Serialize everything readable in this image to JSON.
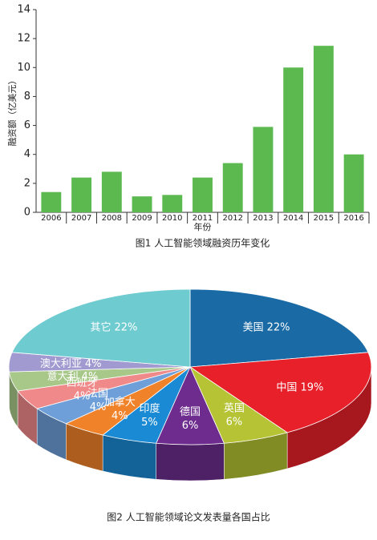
{
  "charts": [
    {
      "type": "bar",
      "title": "图1 人工智能领域融资历年变化",
      "xlabel": "年份",
      "ylabel": "融资额（亿美元）",
      "categories": [
        "2006",
        "2007",
        "2008",
        "2009",
        "2010",
        "2011",
        "2012",
        "2013",
        "2014",
        "2015",
        "2016"
      ],
      "values": [
        1.4,
        2.4,
        2.8,
        1.1,
        1.2,
        2.4,
        3.4,
        5.9,
        10.0,
        11.5,
        4.0
      ],
      "color": "#5cb950",
      "ylim": [
        0,
        14
      ],
      "yticks": [
        0,
        2,
        4,
        6,
        8,
        10,
        12,
        14
      ]
    },
    {
      "type": "pie",
      "title": "图2 人工智能领域论文发表量各国占比",
      "categories": [
        "美国",
        "中国",
        "英国",
        "德国",
        "印度",
        "加拿大",
        "法国",
        "西班牙",
        "意大利",
        "澳大利亚",
        "其它"
      ],
      "values": [
        22,
        19,
        6,
        6,
        5,
        4,
        4,
        4,
        4,
        4,
        22
      ],
      "value_labels": [
        "22%",
        "19%",
        "6%",
        "6%",
        "5%",
        "4%",
        "4%",
        "4%",
        "4%",
        "4%",
        "22%"
      ],
      "colors": [
        "#1a6aa6",
        "#e8202a",
        "#b5c334",
        "#6d2c8e",
        "#1a8ad4",
        "#f0822a",
        "#6e9fd8",
        "#f08a8a",
        "#a8c88a",
        "#a09ad0",
        "#6ecbd0"
      ]
    }
  ]
}
